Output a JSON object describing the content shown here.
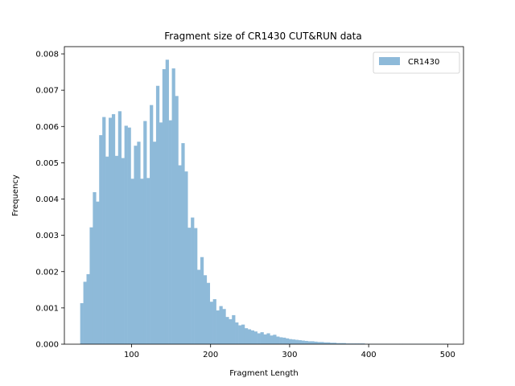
{
  "chart_data": {
    "type": "bar",
    "title": "Fragment size of CR1430 CUT&RUN data",
    "xlabel": "Fragment Length",
    "ylabel": "Frequency",
    "xlim": [
      15,
      520
    ],
    "ylim": [
      0,
      0.0082
    ],
    "xticks": [
      100,
      200,
      300,
      400,
      500
    ],
    "yticks": [
      0.0,
      0.001,
      0.002,
      0.003,
      0.004,
      0.005,
      0.006,
      0.007,
      0.008
    ],
    "ytick_labels": [
      "0.000",
      "0.001",
      "0.002",
      "0.003",
      "0.004",
      "0.005",
      "0.006",
      "0.007",
      "0.008"
    ],
    "legend": {
      "position": "top-right"
    },
    "series": [
      {
        "name": "CR1430",
        "color": "#8ebad9",
        "bin_start": 35,
        "bin_width": 4,
        "values": [
          0.00113,
          0.00172,
          0.00193,
          0.00322,
          0.00419,
          0.00393,
          0.00576,
          0.00626,
          0.00517,
          0.00624,
          0.00634,
          0.00519,
          0.00642,
          0.00513,
          0.00602,
          0.00597,
          0.00456,
          0.00547,
          0.00558,
          0.00456,
          0.00615,
          0.00458,
          0.00659,
          0.00558,
          0.00712,
          0.00611,
          0.00758,
          0.00784,
          0.00617,
          0.0076,
          0.00684,
          0.00493,
          0.00554,
          0.00476,
          0.00321,
          0.00349,
          0.0032,
          0.00205,
          0.0024,
          0.0019,
          0.00169,
          0.00117,
          0.00124,
          0.00093,
          0.00105,
          0.00097,
          0.00075,
          0.00069,
          0.0008,
          0.0006,
          0.00052,
          0.00054,
          0.00044,
          0.00041,
          0.00038,
          0.00035,
          0.0003,
          0.00033,
          0.00027,
          0.0003,
          0.00024,
          0.00026,
          0.00021,
          0.00019,
          0.00018,
          0.00016,
          0.00014,
          0.00013,
          0.00012,
          0.00011,
          0.0001,
          9e-05,
          8e-05,
          8e-05,
          7e-05,
          6e-05,
          6e-05,
          5e-05,
          5e-05,
          4e-05,
          4e-05,
          3e-05,
          3e-05,
          3e-05,
          2e-05,
          2e-05,
          2e-05,
          2e-05,
          2e-05,
          2e-05,
          1e-05,
          1e-05,
          1e-05,
          1e-05,
          1e-05,
          1e-05,
          1e-05,
          1e-05,
          1e-05,
          1e-05,
          1e-05,
          1e-05,
          1e-05,
          1e-05,
          1e-05,
          1e-05,
          1e-05,
          1e-05,
          1e-05,
          1e-05,
          1e-05,
          1e-05,
          1e-05,
          1e-05,
          1e-05,
          1e-05
        ]
      }
    ]
  }
}
